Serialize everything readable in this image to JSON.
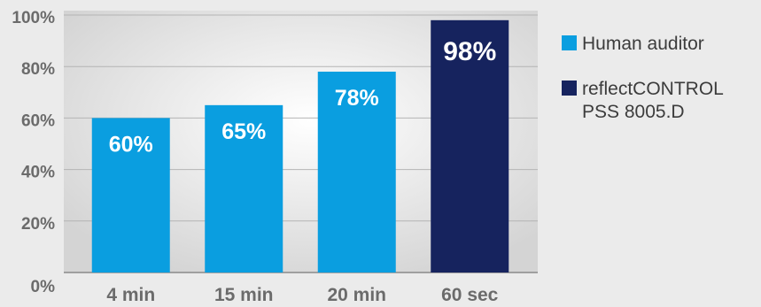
{
  "chart_data": {
    "type": "bar",
    "categories": [
      "4 min",
      "15 min",
      "20 min",
      "60 sec"
    ],
    "values": [
      60,
      65,
      78,
      98
    ],
    "data_labels": [
      "60%",
      "65%",
      "78%",
      "98%"
    ],
    "series_index": [
      0,
      0,
      0,
      1
    ],
    "series": [
      {
        "name": "Human auditor",
        "color": "#0a9ee0"
      },
      {
        "name": "reflectCONTROL\nPSS 8005.D",
        "color": "#16235e"
      }
    ],
    "ylim": [
      0,
      100
    ],
    "y_ticks": [
      "0%",
      "20%",
      "40%",
      "60%",
      "80%",
      "100%"
    ],
    "grid": true,
    "legend_position": "right",
    "title": "",
    "xlabel": "",
    "ylabel": ""
  }
}
